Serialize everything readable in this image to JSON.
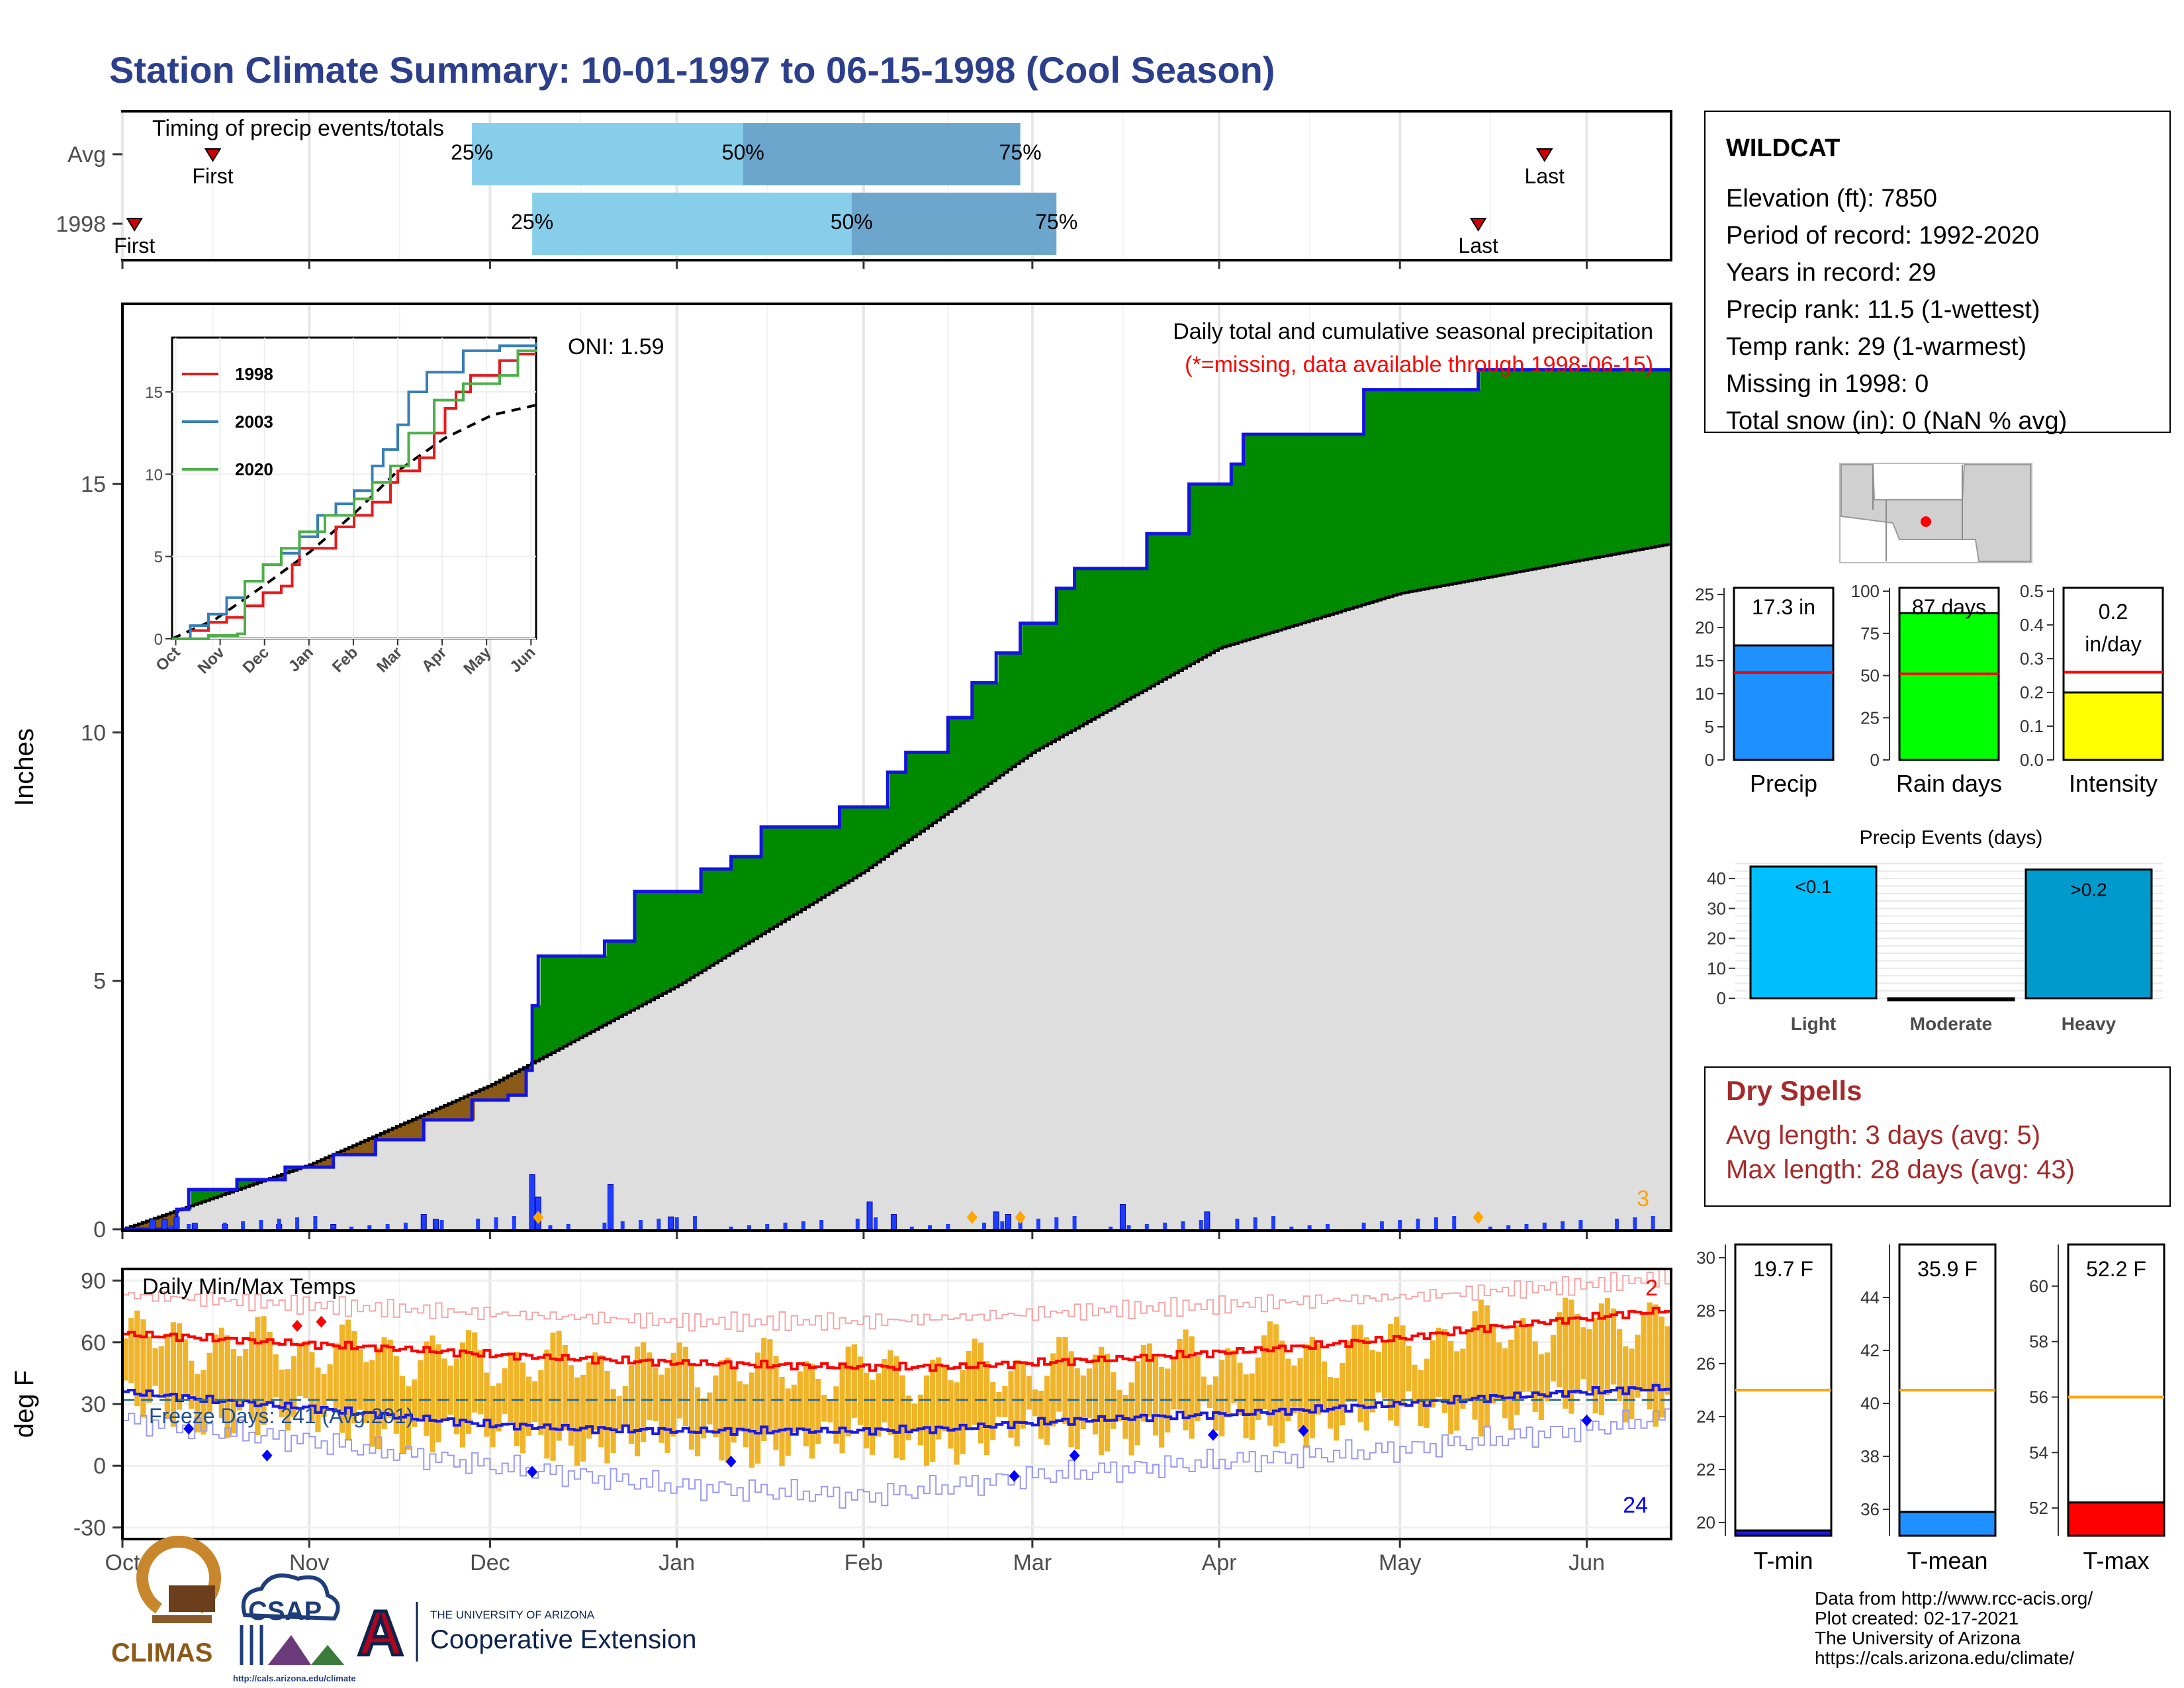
{
  "title": "Station Climate Summary: 10-01-1997 to 06-15-1998 (Cool Season)",
  "colors": {
    "title": "#2B3F8C",
    "cum_precip": "#DEDEDE",
    "above_avg": "#008A00",
    "below_avg": "#8B5A17",
    "daily_bar": "#1F3DFF",
    "q_light": "#87CEEB",
    "q_dark": "#6CA6CD",
    "temp_bar": "#F0B429",
    "max_line": "#FF0000",
    "min_line": "#1A1AE6",
    "dry_spell": "#A52A2A",
    "missing_note": "#FF0000"
  },
  "timing": {
    "label": "Timing of precip events/totals",
    "rows": [
      {
        "name": "Avg",
        "first_label": "First",
        "last_label": "Last",
        "first": "1997-10-16",
        "last": "1998-05-25",
        "q25": "1997-11-28",
        "q50": "1998-01-12",
        "q75": "1998-02-27",
        "q25_label": "25%",
        "q50_label": "50%",
        "q75_label": "75%"
      },
      {
        "name": "1998",
        "first_label": "First",
        "last_label": "Last",
        "first": "1997-10-03",
        "last": "1998-05-14",
        "q25": "1997-12-08",
        "q50": "1998-01-30",
        "q75": "1998-03-05",
        "q25_label": "25%",
        "q50_label": "50%",
        "q75_label": "75%"
      }
    ]
  },
  "precip_panel": {
    "heading": "Daily total and cumulative seasonal precipitation",
    "missing_note": "(*=missing, data available through 1998-06-15)",
    "oni": "ONI: 1.59",
    "ylabel": "Inches",
    "y_ticks": [
      "0",
      "5",
      "10",
      "15"
    ],
    "count_label": "3"
  },
  "inset": {
    "x_ticks": [
      "Oct",
      "Nov",
      "Dec",
      "Jan",
      "Feb",
      "Mar",
      "Apr",
      "May",
      "Jun"
    ],
    "y_ticks": [
      "0",
      "5",
      "10",
      "15"
    ],
    "legend": [
      {
        "name": "1998",
        "color": "#E41A1C"
      },
      {
        "name": "2003",
        "color": "#377EB8"
      },
      {
        "name": "2020",
        "color": "#4DAF4A"
      }
    ]
  },
  "temp_panel": {
    "label": "Daily Min/Max Temps",
    "ylabel": "deg F",
    "y_ticks": [
      "90",
      "60",
      "30",
      "0",
      "-30"
    ],
    "freeze_label": "Freeze Days: 241 (Avg:201)",
    "max_count": "2",
    "min_count": "24"
  },
  "x_months": [
    "Oct",
    "Nov",
    "Dec",
    "Jan",
    "Feb",
    "Mar",
    "Apr",
    "May",
    "Jun"
  ],
  "station": {
    "name": "WILDCAT",
    "lines": [
      "Elevation (ft): 7850",
      "Period of record: 1992-2020",
      "Years in record: 29",
      "Precip rank: 11.5 (1-wettest)",
      "Temp rank: 29 (1-warmest)",
      "Missing in 1998: 0",
      "Total snow (in): 0 (NaN % avg)"
    ]
  },
  "mini_bars": [
    {
      "label": "Precip",
      "value_label": "17.3 in",
      "value": 17.3,
      "avg": 13.2,
      "ymax": 26,
      "ticks": [
        "0",
        "5",
        "10",
        "15",
        "20",
        "25"
      ],
      "tick_vals": [
        0,
        5,
        10,
        15,
        20,
        25
      ],
      "color": "#1E90FF"
    },
    {
      "label": "Rain days",
      "value_label": "87 days",
      "value": 87,
      "avg": 51,
      "ymax": 102,
      "ticks": [
        "0",
        "25",
        "50",
        "75",
        "100"
      ],
      "tick_vals": [
        0,
        25,
        50,
        75,
        100
      ],
      "color": "#00FF00"
    },
    {
      "label": "Intensity",
      "value_label": "0.2 in/day",
      "value": 0.2,
      "avg": 0.26,
      "ymax": 0.51,
      "ticks": [
        "0.0",
        "0.1",
        "0.2",
        "0.3",
        "0.4",
        "0.5"
      ],
      "tick_vals": [
        0,
        0.1,
        0.2,
        0.3,
        0.4,
        0.5
      ],
      "color": "#FFFF00"
    }
  ],
  "precip_events": {
    "title": "Precip Events (days)",
    "categories": [
      "Light",
      "Moderate",
      "Heavy"
    ],
    "values": [
      44,
      0,
      43
    ],
    "bar_labels": [
      "<0.1",
      "",
      ">0.2"
    ],
    "ticks": [
      "0",
      "10",
      "20",
      "30",
      "40"
    ],
    "colors": [
      "#00BFFF",
      "#1F3D7A",
      "#009ACD"
    ]
  },
  "dry_spells": {
    "title": "Dry Spells",
    "avg": "Avg length: 3 days (avg: 5)",
    "max": "Max length: 28 days (avg: 43)"
  },
  "temp_bars": [
    {
      "label": "T-min",
      "value_label": "19.7 F",
      "value": 19.7,
      "avg": 25,
      "ymin": 19.5,
      "ymax": 30.5,
      "ticks": [
        "20",
        "22",
        "24",
        "26",
        "28",
        "30"
      ],
      "tick_vals": [
        20,
        22,
        24,
        26,
        28,
        30
      ],
      "color": "#1A1AE6"
    },
    {
      "label": "T-mean",
      "value_label": "35.9 F",
      "value": 35.9,
      "avg": 40.5,
      "ymin": 35,
      "ymax": 46,
      "ticks": [
        "36",
        "38",
        "40",
        "42",
        "44"
      ],
      "tick_vals": [
        36,
        38,
        40,
        42,
        44
      ],
      "color": "#1E90FF"
    },
    {
      "label": "T-max",
      "value_label": "52.2 F",
      "value": 52.2,
      "avg": 56,
      "ymin": 51,
      "ymax": 61.5,
      "ticks": [
        "52",
        "54",
        "56",
        "58",
        "60"
      ],
      "tick_vals": [
        52,
        54,
        56,
        58,
        60
      ],
      "color": "#FF0000"
    }
  ],
  "footer": {
    "lines": [
      "Data from http://www.rcc-acis.org/",
      "Plot created: 02-17-2021",
      "The University of Arizona",
      "https://cals.arizona.edu/climate/"
    ],
    "logo_climas": "CLIMAS",
    "logo_csap": "CSAP",
    "logo_csap_url": "http://cals.arizona.edu/climate",
    "uofa_small": "THE UNIVERSITY OF ARIZONA",
    "uofa_big": "Cooperative Extension",
    "uofa_letter": "A"
  },
  "chart_data": [
    {
      "type": "area",
      "title": "Daily total and cumulative seasonal precipitation",
      "ylabel": "Inches",
      "ylim": [
        0,
        18.6
      ],
      "x_range": [
        "1997-10-01",
        "1998-06-15"
      ],
      "series": [
        {
          "name": "1998",
          "x": [
            "1997-10-01",
            "1997-10-10",
            "1997-10-12",
            "1997-10-20",
            "1997-10-28",
            "1997-11-05",
            "1997-11-12",
            "1997-11-20",
            "1997-11-28",
            "1997-12-04",
            "1997-12-07",
            "1997-12-08",
            "1997-12-09",
            "1997-12-12",
            "1997-12-20",
            "1997-12-25",
            "1998-01-05",
            "1998-01-10",
            "1998-01-15",
            "1998-01-28",
            "1998-02-05",
            "1998-02-08",
            "1998-02-15",
            "1998-02-19",
            "1998-02-23",
            "1998-02-27",
            "1998-03-05",
            "1998-03-08",
            "1998-03-20",
            "1998-03-27",
            "1998-04-03",
            "1998-04-05",
            "1998-04-25",
            "1998-05-14",
            "1998-06-15"
          ],
          "y": [
            0,
            0.4,
            0.8,
            1.0,
            1.25,
            1.5,
            1.8,
            2.2,
            2.6,
            2.7,
            3.2,
            4.5,
            5.5,
            5.5,
            5.8,
            6.8,
            7.25,
            7.5,
            8.1,
            8.5,
            9.2,
            9.6,
            10.3,
            11.0,
            11.6,
            12.2,
            12.9,
            13.3,
            14.0,
            15.0,
            15.4,
            16.0,
            16.9,
            17.3,
            17.3
          ]
        },
        {
          "name": "Average",
          "x": [
            "1997-10-01",
            "1997-11-01",
            "1997-12-01",
            "1998-01-01",
            "1998-02-01",
            "1998-03-01",
            "1998-04-01",
            "1998-05-01",
            "1998-06-15"
          ],
          "y": [
            0,
            1.3,
            2.9,
            4.9,
            7.2,
            9.6,
            11.7,
            12.8,
            13.8
          ]
        }
      ],
      "daily": {
        "x": [
          "1997-10-06",
          "1997-10-08",
          "1997-10-10",
          "1997-10-13",
          "1997-10-18",
          "1997-10-27",
          "1997-11-05",
          "1997-11-20",
          "1997-11-22",
          "1997-12-08",
          "1997-12-09",
          "1997-12-21",
          "1997-12-31",
          "1998-02-02",
          "1998-02-06",
          "1998-02-23",
          "1998-02-25",
          "1998-03-16",
          "1998-03-30"
        ],
        "y": [
          0.2,
          0.2,
          0.25,
          0.12,
          0.1,
          0.1,
          0.1,
          0.3,
          0.2,
          1.1,
          0.65,
          0.9,
          0.25,
          0.55,
          0.3,
          0.35,
          0.3,
          0.5,
          0.35
        ]
      }
    },
    {
      "type": "line",
      "title": "Daily Min/Max Temps",
      "ylabel": "deg F",
      "ylim": [
        -35,
        95
      ],
      "series": [
        {
          "name": "Max (average)",
          "x": [
            "1997-10-01",
            "1997-10-15",
            "1997-11-01",
            "1997-11-15",
            "1997-12-01",
            "1997-12-15",
            "1998-01-01",
            "1998-01-15",
            "1998-02-01",
            "1998-02-15",
            "1998-03-01",
            "1998-03-15",
            "1998-04-01",
            "1998-04-15",
            "1998-05-01",
            "1998-05-15",
            "1998-06-01",
            "1998-06-15"
          ],
          "y": [
            64,
            62,
            59,
            57,
            54,
            52,
            50,
            49,
            48,
            48,
            50,
            52,
            55,
            58,
            62,
            67,
            72,
            76
          ]
        },
        {
          "name": "Min (average)",
          "x": [
            "1997-10-01",
            "1997-10-15",
            "1997-11-01",
            "1997-11-15",
            "1997-12-01",
            "1997-12-15",
            "1998-01-01",
            "1998-01-15",
            "1998-02-01",
            "1998-02-15",
            "1998-03-01",
            "1998-03-15",
            "1998-04-01",
            "1998-04-15",
            "1998-05-01",
            "1998-05-15",
            "1998-06-01",
            "1998-06-15"
          ],
          "y": [
            36,
            32,
            28,
            24,
            20,
            18,
            17,
            17,
            17,
            18,
            21,
            23,
            25,
            27,
            30,
            33,
            36,
            38
          ]
        },
        {
          "name": "Max (record)",
          "x": [
            "1997-10-01",
            "1997-11-01",
            "1997-12-01",
            "1998-01-01",
            "1998-02-01",
            "1998-03-01",
            "1998-04-01",
            "1998-05-01",
            "1998-06-01",
            "1998-06-15"
          ],
          "y": [
            83,
            78,
            74,
            70,
            70,
            74,
            78,
            82,
            88,
            92
          ]
        },
        {
          "name": "Min (record)",
          "x": [
            "1997-10-01",
            "1997-11-01",
            "1997-12-01",
            "1998-01-01",
            "1998-02-01",
            "1998-03-01",
            "1998-04-01",
            "1998-05-01",
            "1998-06-01",
            "1998-06-15"
          ],
          "y": [
            22,
            12,
            0,
            -10,
            -15,
            -5,
            2,
            8,
            18,
            24
          ]
        }
      ],
      "freeze_threshold": 32
    }
  ]
}
